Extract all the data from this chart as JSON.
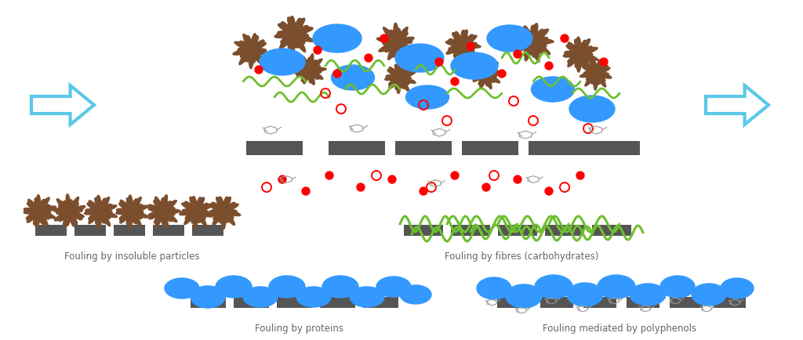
{
  "bg_color": "#ffffff",
  "brown_color": "#7B4F2E",
  "blue_color": "#3399FF",
  "green_color": "#6DBF2F",
  "red_color": "#FF0000",
  "gray_color": "#555555",
  "arrow_color": "#5BC8E8",
  "text_color": "#666666",
  "labels": {
    "insoluble": "Fouling by insoluble particles",
    "fibres": "Fouling by fibres (carbohydrates)",
    "proteins": "Fouling by proteins",
    "polyphenols": "Fouling mediated by polyphenols"
  },
  "fig_w": 10.24,
  "fig_h": 4.35
}
